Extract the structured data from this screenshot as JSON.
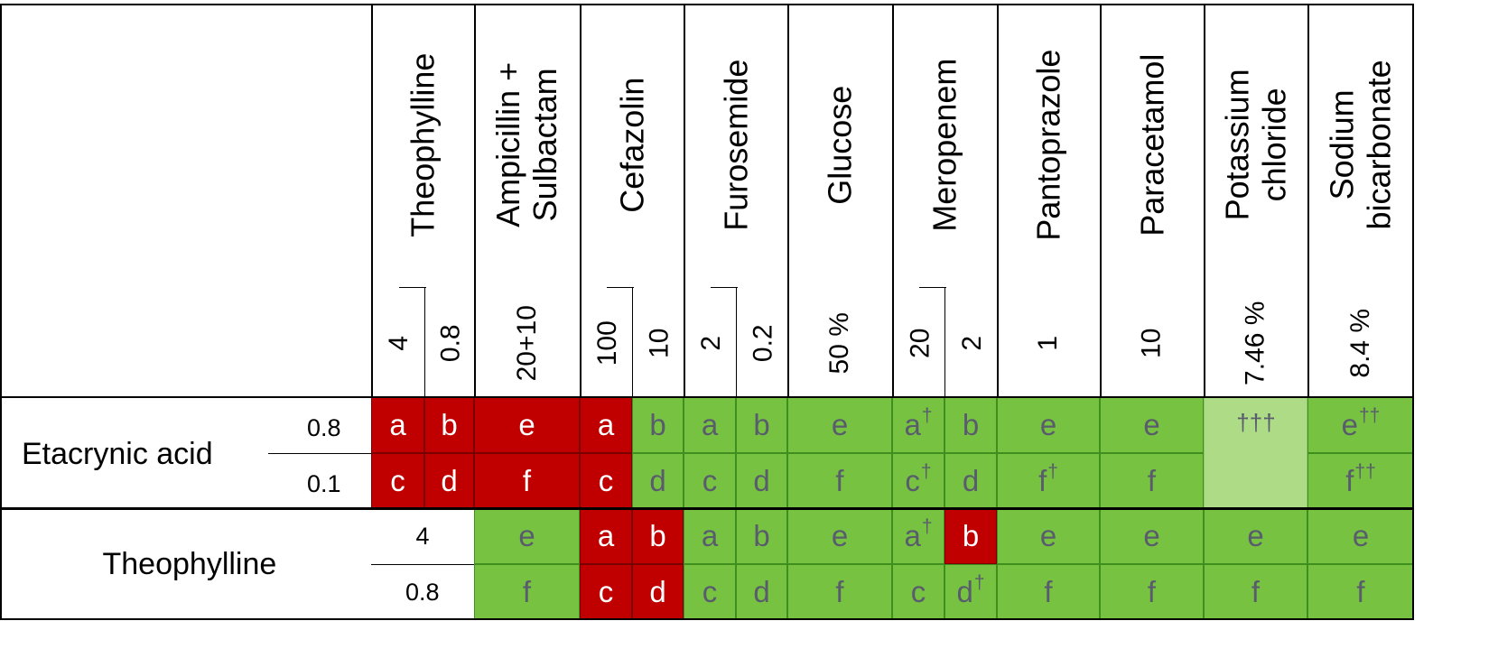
{
  "colors": {
    "red": "#c00000",
    "green": "#77c341",
    "light_green": "#aedb86",
    "text_on_green": "#595c6c",
    "text_on_red": "#ffffff"
  },
  "chart_data": {
    "type": "table",
    "columns": [
      {
        "drug": "Theophylline",
        "concentrations": [
          "4",
          "0.8"
        ]
      },
      {
        "drug": "Ampicillin +\nSulbactam",
        "concentrations": [
          "20+10"
        ]
      },
      {
        "drug": "Cefazolin",
        "concentrations": [
          "100",
          "10"
        ]
      },
      {
        "drug": "Furosemide",
        "concentrations": [
          "2",
          "0.2"
        ]
      },
      {
        "drug": "Glucose",
        "concentrations": [
          "50 %"
        ]
      },
      {
        "drug": "Meropenem",
        "concentrations": [
          "20",
          "2"
        ]
      },
      {
        "drug": "Pantoprazole",
        "concentrations": [
          "1"
        ]
      },
      {
        "drug": "Paracetamol",
        "concentrations": [
          "10"
        ]
      },
      {
        "drug": "Potassium\nchloride",
        "concentrations": [
          "7.46 %"
        ]
      },
      {
        "drug": "Sodium\nbicarbonate",
        "concentrations": [
          "8.4 %"
        ]
      }
    ],
    "rows": [
      {
        "drug": "Etacrynic acid",
        "concentrations": [
          "0.8",
          "0.1"
        ]
      },
      {
        "drug": "Theophylline",
        "concentrations": [
          "4",
          "0.8"
        ]
      }
    ],
    "cells": [
      {
        "col": 0,
        "rows": [
          0
        ],
        "label": "a",
        "sup": "",
        "color": "red"
      },
      {
        "col": 1,
        "rows": [
          0
        ],
        "label": "b",
        "sup": "",
        "color": "red"
      },
      {
        "col": 0,
        "rows": [
          1
        ],
        "label": "c",
        "sup": "",
        "color": "red"
      },
      {
        "col": 1,
        "rows": [
          1
        ],
        "label": "d",
        "sup": "",
        "color": "red"
      },
      {
        "col": 2,
        "rows": [
          0
        ],
        "label": "e",
        "sup": "",
        "color": "red"
      },
      {
        "col": 2,
        "rows": [
          1
        ],
        "label": "f",
        "sup": "",
        "color": "red"
      },
      {
        "col": 3,
        "rows": [
          0
        ],
        "label": "a",
        "sup": "",
        "color": "red"
      },
      {
        "col": 3,
        "rows": [
          1
        ],
        "label": "c",
        "sup": "",
        "color": "red"
      },
      {
        "col": 4,
        "rows": [
          0
        ],
        "label": "b",
        "sup": "",
        "color": "green"
      },
      {
        "col": 4,
        "rows": [
          1
        ],
        "label": "d",
        "sup": "",
        "color": "green"
      },
      {
        "col": 5,
        "rows": [
          0
        ],
        "label": "a",
        "sup": "",
        "color": "green"
      },
      {
        "col": 5,
        "rows": [
          1
        ],
        "label": "c",
        "sup": "",
        "color": "green"
      },
      {
        "col": 6,
        "rows": [
          0
        ],
        "label": "b",
        "sup": "",
        "color": "green"
      },
      {
        "col": 6,
        "rows": [
          1
        ],
        "label": "d",
        "sup": "",
        "color": "green"
      },
      {
        "col": 7,
        "rows": [
          0
        ],
        "label": "e",
        "sup": "",
        "color": "green"
      },
      {
        "col": 7,
        "rows": [
          1
        ],
        "label": "f",
        "sup": "",
        "color": "green"
      },
      {
        "col": 8,
        "rows": [
          0
        ],
        "label": "a",
        "sup": "†",
        "color": "green"
      },
      {
        "col": 8,
        "rows": [
          1
        ],
        "label": "c",
        "sup": "†",
        "color": "green"
      },
      {
        "col": 9,
        "rows": [
          0
        ],
        "label": "b",
        "sup": "",
        "color": "green"
      },
      {
        "col": 9,
        "rows": [
          1
        ],
        "label": "d",
        "sup": "",
        "color": "green"
      },
      {
        "col": 10,
        "rows": [
          0
        ],
        "label": "e",
        "sup": "",
        "color": "green"
      },
      {
        "col": 10,
        "rows": [
          1
        ],
        "label": "f",
        "sup": "†",
        "color": "green"
      },
      {
        "col": 11,
        "rows": [
          0
        ],
        "label": "e",
        "sup": "",
        "color": "green"
      },
      {
        "col": 11,
        "rows": [
          1
        ],
        "label": "f",
        "sup": "",
        "color": "green"
      },
      {
        "col": 12,
        "rows": [
          0,
          1
        ],
        "label": "",
        "sup": "†††",
        "color": "light_green"
      },
      {
        "col": 13,
        "rows": [
          0
        ],
        "label": "e",
        "sup": "††",
        "color": "green"
      },
      {
        "col": 13,
        "rows": [
          1
        ],
        "label": "f",
        "sup": "††",
        "color": "green"
      },
      {
        "col": 2,
        "rows": [
          2
        ],
        "label": "e",
        "sup": "",
        "color": "green"
      },
      {
        "col": 2,
        "rows": [
          3
        ],
        "label": "f",
        "sup": "",
        "color": "green"
      },
      {
        "col": 3,
        "rows": [
          2
        ],
        "label": "a",
        "sup": "",
        "color": "red"
      },
      {
        "col": 3,
        "rows": [
          3
        ],
        "label": "c",
        "sup": "",
        "color": "red"
      },
      {
        "col": 4,
        "rows": [
          2
        ],
        "label": "b",
        "sup": "",
        "color": "red"
      },
      {
        "col": 4,
        "rows": [
          3
        ],
        "label": "d",
        "sup": "",
        "color": "red"
      },
      {
        "col": 5,
        "rows": [
          2
        ],
        "label": "a",
        "sup": "",
        "color": "green"
      },
      {
        "col": 5,
        "rows": [
          3
        ],
        "label": "c",
        "sup": "",
        "color": "green"
      },
      {
        "col": 6,
        "rows": [
          2
        ],
        "label": "b",
        "sup": "",
        "color": "green"
      },
      {
        "col": 6,
        "rows": [
          3
        ],
        "label": "d",
        "sup": "",
        "color": "green"
      },
      {
        "col": 7,
        "rows": [
          2
        ],
        "label": "e",
        "sup": "",
        "color": "green"
      },
      {
        "col": 7,
        "rows": [
          3
        ],
        "label": "f",
        "sup": "",
        "color": "green"
      },
      {
        "col": 8,
        "rows": [
          2
        ],
        "label": "a",
        "sup": "†",
        "color": "green"
      },
      {
        "col": 8,
        "rows": [
          3
        ],
        "label": "c",
        "sup": "",
        "color": "green"
      },
      {
        "col": 9,
        "rows": [
          2
        ],
        "label": "b",
        "sup": "",
        "color": "red"
      },
      {
        "col": 9,
        "rows": [
          3
        ],
        "label": "d",
        "sup": "†",
        "color": "green"
      },
      {
        "col": 10,
        "rows": [
          2
        ],
        "label": "e",
        "sup": "",
        "color": "green"
      },
      {
        "col": 10,
        "rows": [
          3
        ],
        "label": "f",
        "sup": "",
        "color": "green"
      },
      {
        "col": 11,
        "rows": [
          2
        ],
        "label": "e",
        "sup": "",
        "color": "green"
      },
      {
        "col": 11,
        "rows": [
          3
        ],
        "label": "f",
        "sup": "",
        "color": "green"
      },
      {
        "col": 12,
        "rows": [
          2
        ],
        "label": "e",
        "sup": "",
        "color": "green"
      },
      {
        "col": 12,
        "rows": [
          3
        ],
        "label": "f",
        "sup": "",
        "color": "green"
      },
      {
        "col": 13,
        "rows": [
          2
        ],
        "label": "e",
        "sup": "",
        "color": "green"
      },
      {
        "col": 13,
        "rows": [
          3
        ],
        "label": "f",
        "sup": "",
        "color": "green"
      }
    ]
  }
}
